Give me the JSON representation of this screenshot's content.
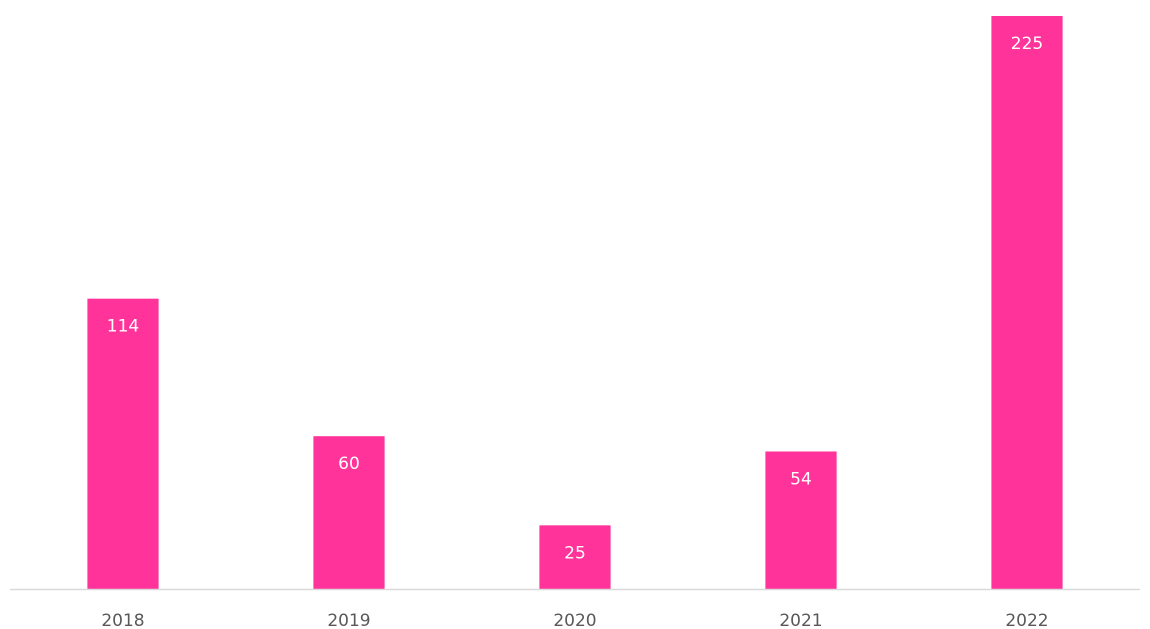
{
  "chart_data": {
    "type": "bar",
    "categories": [
      "2018",
      "2019",
      "2020",
      "2021",
      "2022"
    ],
    "values": [
      114,
      60,
      25,
      54,
      225
    ],
    "color": "#ff3399"
  }
}
